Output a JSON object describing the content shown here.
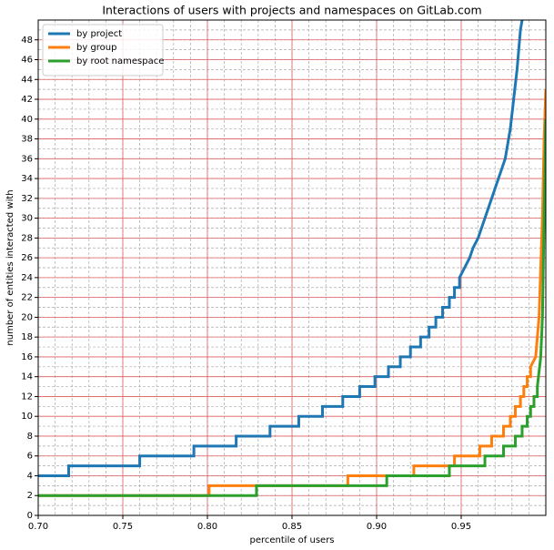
{
  "chart_data": {
    "type": "line",
    "title": "Interactions of users with projects and namespaces on GitLab.com",
    "xlabel": "percentile of users",
    "ylabel": "number of entities interacted with",
    "xlim": [
      0.7,
      1.0
    ],
    "ylim": [
      0,
      50
    ],
    "xticks": [
      {
        "value": 0.7,
        "label": "0.70"
      },
      0.75,
      {
        "value": 0.8,
        "label": "0.80"
      },
      0.85,
      {
        "value": 0.9,
        "label": "0.90"
      },
      0.95
    ],
    "yticks": [
      0,
      2,
      4,
      6,
      8,
      10,
      12,
      14,
      16,
      18,
      20,
      22,
      24,
      26,
      28,
      30,
      32,
      34,
      36,
      38,
      40,
      42,
      44,
      46,
      48
    ],
    "grid": true,
    "minor_grid": true,
    "legend": "upper left",
    "series": [
      {
        "name": "by project",
        "color": "#1f77b4",
        "x": [
          0.7,
          0.718,
          0.718,
          0.76,
          0.76,
          0.792,
          0.792,
          0.817,
          0.817,
          0.837,
          0.837,
          0.854,
          0.854,
          0.868,
          0.868,
          0.88,
          0.88,
          0.89,
          0.89,
          0.899,
          0.899,
          0.907,
          0.907,
          0.914,
          0.914,
          0.92,
          0.92,
          0.926,
          0.926,
          0.931,
          0.931,
          0.935,
          0.935,
          0.939,
          0.939,
          0.943,
          0.943,
          0.946,
          0.946,
          0.949,
          0.949,
          0.952,
          0.955,
          0.957,
          0.96,
          0.962,
          0.964,
          0.966,
          0.968,
          0.97,
          0.972,
          0.974,
          0.976,
          0.977,
          0.979,
          0.981,
          0.983,
          0.985,
          0.987
        ],
        "values": [
          4,
          4,
          5,
          5,
          6,
          6,
          7,
          7,
          8,
          8,
          9,
          9,
          10,
          10,
          11,
          11,
          12,
          12,
          13,
          13,
          14,
          14,
          15,
          15,
          16,
          16,
          17,
          17,
          18,
          18,
          19,
          19,
          20,
          20,
          21,
          21,
          22,
          22,
          23,
          23,
          24,
          25,
          26,
          27,
          28,
          29,
          30,
          31,
          32,
          33,
          34,
          35,
          36,
          37,
          39,
          42,
          45,
          49,
          51
        ]
      },
      {
        "name": "by group",
        "color": "#ff7f0e",
        "x": [
          0.7,
          0.801,
          0.801,
          0.883,
          0.883,
          0.922,
          0.922,
          0.946,
          0.946,
          0.961,
          0.961,
          0.968,
          0.968,
          0.975,
          0.975,
          0.979,
          0.979,
          0.982,
          0.982,
          0.985,
          0.985,
          0.987,
          0.987,
          0.989,
          0.989,
          0.991,
          0.991,
          0.994,
          0.996,
          0.998,
          0.999,
          1.0
        ],
        "values": [
          2,
          2,
          3,
          3,
          4,
          4,
          5,
          5,
          6,
          6,
          7,
          7,
          8,
          8,
          9,
          9,
          10,
          10,
          11,
          11,
          12,
          12,
          13,
          13,
          14,
          14,
          15,
          16,
          20,
          30,
          38,
          43
        ]
      },
      {
        "name": "by root namespace",
        "color": "#2ca02c",
        "x": [
          0.7,
          0.829,
          0.829,
          0.906,
          0.906,
          0.943,
          0.943,
          0.964,
          0.964,
          0.975,
          0.975,
          0.982,
          0.982,
          0.986,
          0.986,
          0.989,
          0.989,
          0.991,
          0.991,
          0.993,
          0.993,
          0.995,
          0.995,
          0.997,
          0.998,
          0.999,
          1.0
        ],
        "values": [
          2,
          2,
          3,
          3,
          4,
          4,
          5,
          5,
          6,
          6,
          7,
          7,
          8,
          8,
          9,
          9,
          10,
          10,
          11,
          11,
          12,
          12,
          13,
          16,
          20,
          30,
          40
        ]
      }
    ]
  }
}
